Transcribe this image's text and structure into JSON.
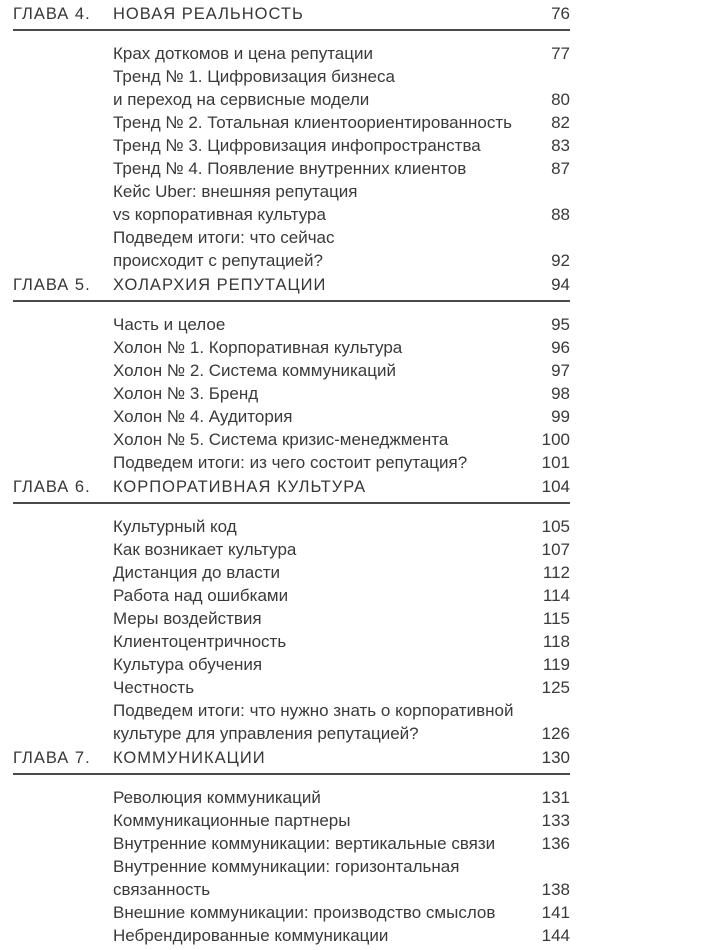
{
  "chapters": [
    {
      "label": "ГЛАВА 4.",
      "title": "НОВАЯ РЕАЛЬНОСТЬ",
      "page": "76",
      "entries": [
        {
          "lines": [
            "Крах доткомов и цена репутации"
          ],
          "page": "77"
        },
        {
          "lines": [
            "Тренд № 1. Цифровизация бизнеса",
            "и переход на сервисные модели"
          ],
          "page": "80"
        },
        {
          "lines": [
            "Тренд № 2. Тотальная клиентоориентированность"
          ],
          "page": "82"
        },
        {
          "lines": [
            "Тренд № 3. Цифровизация инфопространства"
          ],
          "page": "83"
        },
        {
          "lines": [
            "Тренд № 4. Появление внутренних клиентов"
          ],
          "page": "87"
        },
        {
          "lines": [
            "Кейс Uber: внешняя репутация",
            "vs корпоративная культура"
          ],
          "page": "88"
        },
        {
          "lines": [
            "Подведем итоги: что сейчас",
            "происходит с репутацией?"
          ],
          "page": "92"
        }
      ]
    },
    {
      "label": "ГЛАВА 5.",
      "title": "ХОЛАРХИЯ РЕПУТАЦИИ",
      "page": "94",
      "entries": [
        {
          "lines": [
            "Часть и целое"
          ],
          "page": "95"
        },
        {
          "lines": [
            "Холон № 1. Корпоративная культура"
          ],
          "page": "96"
        },
        {
          "lines": [
            "Холон № 2. Система коммуникаций"
          ],
          "page": "97"
        },
        {
          "lines": [
            "Холон № 3. Бренд"
          ],
          "page": "98"
        },
        {
          "lines": [
            "Холон № 4. Аудитория"
          ],
          "page": "99"
        },
        {
          "lines": [
            "Холон № 5. Система кризис-менеджмента"
          ],
          "page": "100"
        },
        {
          "lines": [
            "Подведем итоги: из чего состоит репутация?"
          ],
          "page": "101"
        }
      ]
    },
    {
      "label": "ГЛАВА 6.",
      "title": "КОРПОРАТИВНАЯ КУЛЬТУРА",
      "page": "104",
      "entries": [
        {
          "lines": [
            "Культурный код"
          ],
          "page": "105"
        },
        {
          "lines": [
            "Как возникает культура"
          ],
          "page": "107"
        },
        {
          "lines": [
            "Дистанция до власти"
          ],
          "page": "112"
        },
        {
          "lines": [
            "Работа над ошибками"
          ],
          "page": "114"
        },
        {
          "lines": [
            "Меры воздействия"
          ],
          "page": "115"
        },
        {
          "lines": [
            "Клиентоцентричность"
          ],
          "page": "118"
        },
        {
          "lines": [
            "Культура обучения"
          ],
          "page": "119"
        },
        {
          "lines": [
            "Честность"
          ],
          "page": "125"
        },
        {
          "lines": [
            "Подведем итоги: что нужно знать о корпоративной",
            "культуре для управления репутацией?"
          ],
          "page": "126"
        }
      ]
    },
    {
      "label": "ГЛАВА 7.",
      "title": "КОММУНИКАЦИИ",
      "page": "130",
      "entries": [
        {
          "lines": [
            "Революция коммуникаций"
          ],
          "page": "131"
        },
        {
          "lines": [
            "Коммуникационные партнеры"
          ],
          "page": "133"
        },
        {
          "lines": [
            "Внутренние коммуникации: вертикальные связи"
          ],
          "page": "136"
        },
        {
          "lines": [
            "Внутренние коммуникации: горизонтальная",
            "связанность"
          ],
          "page": "138"
        },
        {
          "lines": [
            "Внешние коммуникации: производство смыслов"
          ],
          "page": "141"
        },
        {
          "lines": [
            "Небрендированные коммуникации"
          ],
          "page": "144"
        }
      ]
    }
  ]
}
